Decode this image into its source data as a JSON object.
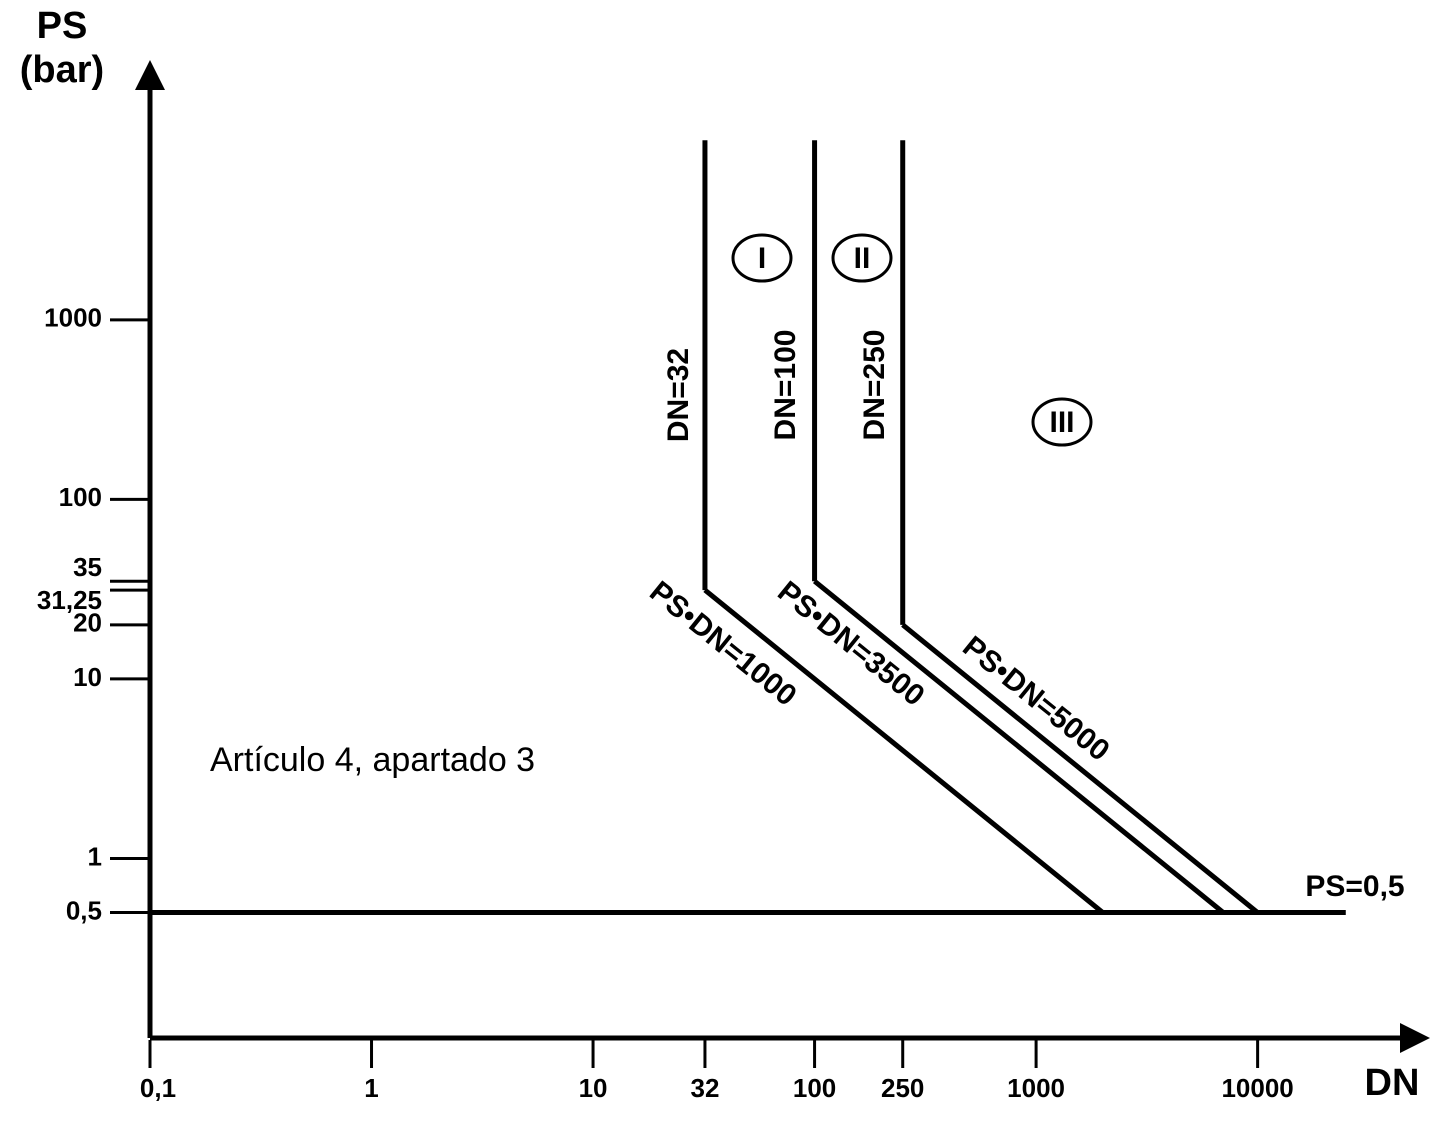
{
  "chart_data": {
    "type": "line",
    "xlabel": "DN",
    "ylabel_lines": [
      "PS",
      "(bar)"
    ],
    "log_x": true,
    "log_y": true,
    "xlim": [
      0.1,
      60000
    ],
    "ylim": [
      0.1,
      28000
    ],
    "xticks": [
      {
        "value": 0.1,
        "label": "0,1"
      },
      1,
      10,
      32,
      100,
      250,
      1000,
      10000
    ],
    "yticks": [
      {
        "value": 0.5,
        "label": "0,5"
      },
      1,
      10,
      20,
      {
        "value": 31.25,
        "label": "31,25"
      },
      35,
      100,
      1000
    ],
    "series": [
      {
        "name": "DN=32",
        "color": "#000000",
        "x": [
          32,
          32
        ],
        "values": [
          10000,
          31.25
        ]
      },
      {
        "name": "DN=100",
        "color": "#000000",
        "x": [
          100,
          100
        ],
        "values": [
          10000,
          35
        ]
      },
      {
        "name": "DN=250",
        "color": "#000000",
        "x": [
          250,
          250
        ],
        "values": [
          10000,
          20
        ]
      },
      {
        "name": "PS•DN=1000",
        "color": "#000000",
        "x": [
          32,
          2000
        ],
        "values": [
          31.25,
          0.5
        ]
      },
      {
        "name": "PS•DN=3500",
        "color": "#000000",
        "x": [
          100,
          7000
        ],
        "values": [
          35,
          0.5
        ]
      },
      {
        "name": "PS•DN=5000",
        "color": "#000000",
        "x": [
          250,
          10000
        ],
        "values": [
          20,
          0.5
        ]
      },
      {
        "name": "PS=0,5",
        "color": "#000000",
        "x": [
          0.1,
          25000
        ],
        "values": [
          0.5,
          0.5
        ]
      }
    ],
    "zone_labels": [
      "I",
      "II",
      "III"
    ],
    "annotation": "Artículo 4, apartado 3"
  }
}
